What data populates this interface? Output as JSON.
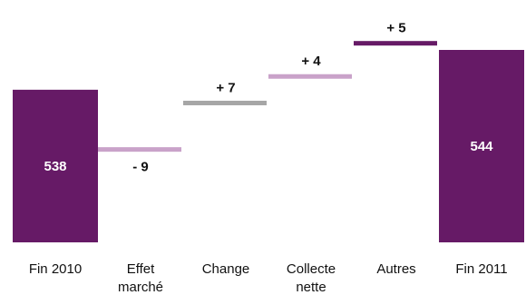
{
  "chart_data": {
    "type": "bar",
    "subtype": "waterfall",
    "categories": [
      "Fin 2010",
      "Effet marché",
      "Change",
      "Collecte nette",
      "Autres",
      "Fin 2011"
    ],
    "category_label_lines": [
      [
        "Fin 2010"
      ],
      [
        "Effet",
        "marché"
      ],
      [
        "Change"
      ],
      [
        "Collecte",
        "nette"
      ],
      [
        "Autres"
      ],
      [
        "Fin 2011"
      ]
    ],
    "values": [
      538,
      -9,
      7,
      4,
      5,
      544
    ],
    "kinds": [
      "total",
      "delta",
      "delta",
      "delta",
      "delta",
      "total"
    ],
    "value_labels": [
      "538",
      "- 9",
      "+ 7",
      "+ 4",
      "+ 5",
      "544"
    ],
    "colors": [
      "#661a66",
      "#c9a2c9",
      "#a6a6a6",
      "#c9a2c9",
      "#661a66",
      "#661a66"
    ],
    "title": "",
    "xlabel": "",
    "ylabel": "",
    "grid": false,
    "legend": "none"
  }
}
